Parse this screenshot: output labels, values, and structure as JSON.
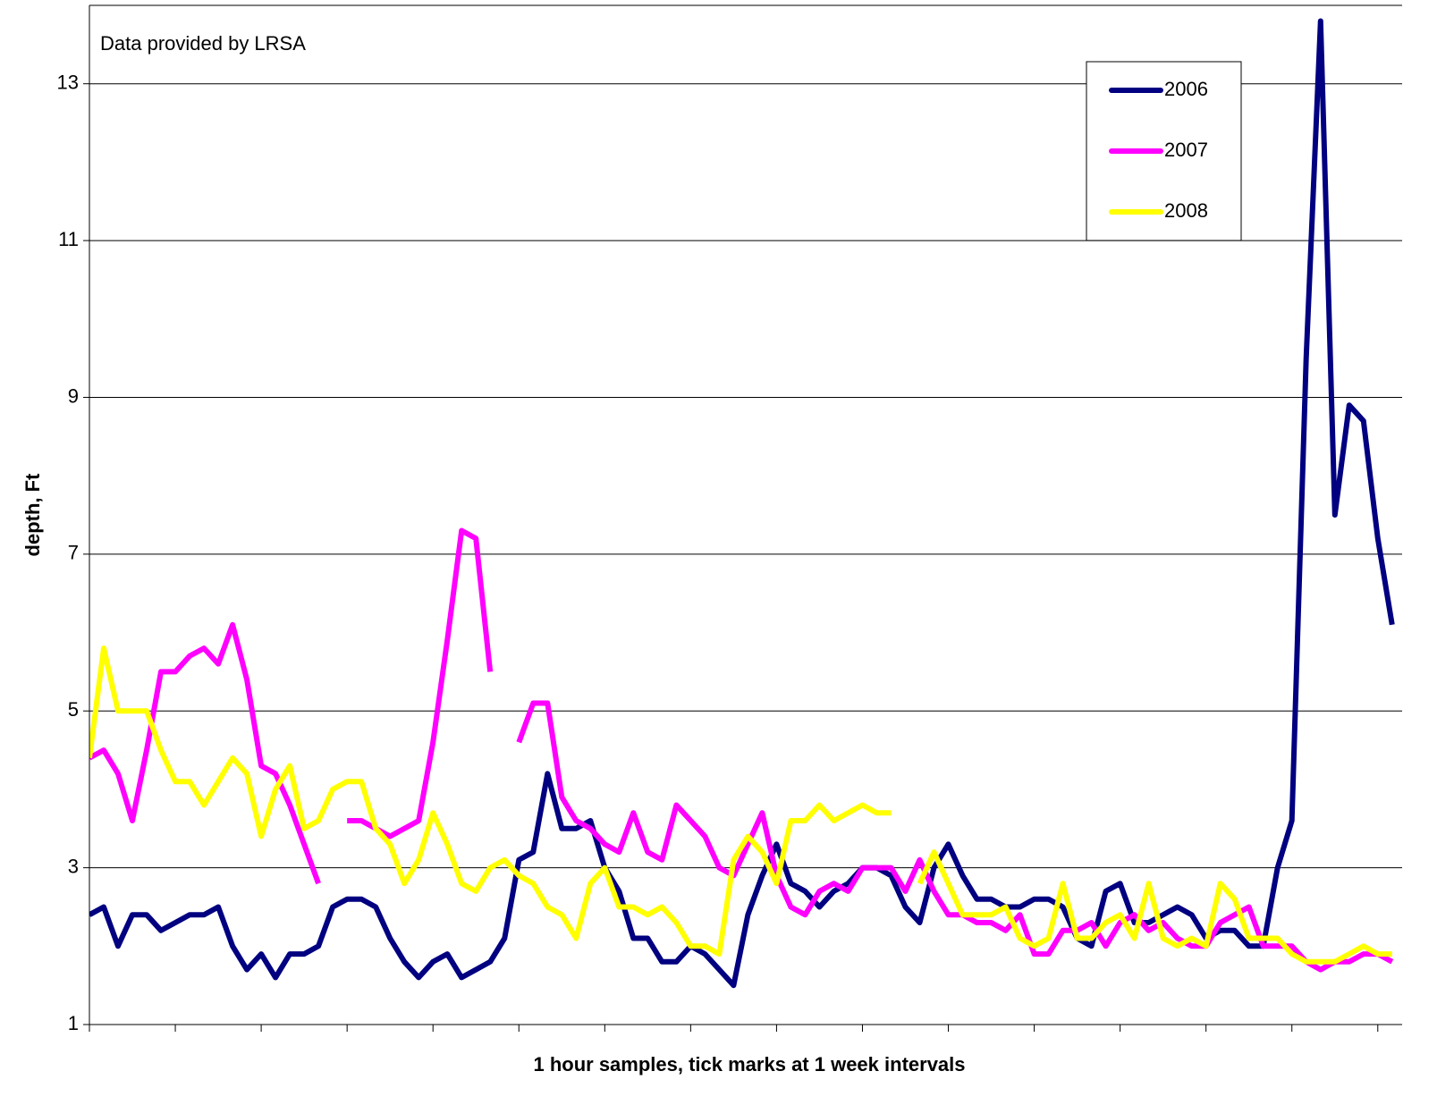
{
  "chart_data": {
    "type": "line",
    "annotation": "Data provided by LRSA",
    "ylabel": "depth, Ft",
    "xlabel": "1 hour samples, tick marks at 1 week intervals",
    "ylim": [
      1,
      14
    ],
    "yticks": [
      1,
      3,
      5,
      7,
      9,
      11,
      13
    ],
    "xlim": [
      0,
      91.7
    ],
    "xticks": [
      0,
      6,
      12,
      18,
      24,
      30,
      36,
      42,
      48,
      54,
      60,
      66,
      72,
      78,
      84,
      90
    ],
    "grid": true,
    "legend": "upper right",
    "series": [
      {
        "name": "2006",
        "color": "#000080",
        "values": [
          2.4,
          2.5,
          2.0,
          2.4,
          2.4,
          2.2,
          2.3,
          2.4,
          2.4,
          2.5,
          2.0,
          1.7,
          1.9,
          1.6,
          1.9,
          1.9,
          2.0,
          2.5,
          2.6,
          2.6,
          2.5,
          2.1,
          1.8,
          1.6,
          1.8,
          1.9,
          1.6,
          1.7,
          1.8,
          2.1,
          3.1,
          3.2,
          4.2,
          3.5,
          3.5,
          3.6,
          3.0,
          2.7,
          2.1,
          2.1,
          1.8,
          1.8,
          2.0,
          1.9,
          1.7,
          1.5,
          2.4,
          2.9,
          3.3,
          2.8,
          2.7,
          2.5,
          2.7,
          2.8,
          3.0,
          3.0,
          2.9,
          2.5,
          2.3,
          3.0,
          3.3,
          2.9,
          2.6,
          2.6,
          2.5,
          2.5,
          2.6,
          2.6,
          2.5,
          2.1,
          2.0,
          2.7,
          2.8,
          2.3,
          2.3,
          2.4,
          2.5,
          2.4,
          2.1,
          2.2,
          2.2,
          2.0,
          2.0,
          3.0,
          3.6,
          9.5,
          13.8,
          7.5,
          8.9,
          8.7,
          7.2,
          6.1
        ]
      },
      {
        "name": "2007",
        "color": "#ff00ff",
        "values": [
          4.4,
          4.5,
          4.2,
          3.6,
          4.5,
          5.5,
          5.5,
          5.7,
          5.8,
          5.6,
          6.1,
          5.4,
          4.3,
          4.2,
          3.8,
          3.3,
          2.8,
          null,
          3.6,
          3.6,
          3.5,
          3.4,
          3.5,
          3.6,
          4.6,
          5.9,
          7.3,
          7.2,
          5.5,
          null,
          4.6,
          5.1,
          5.1,
          3.9,
          3.6,
          3.5,
          3.3,
          3.2,
          3.7,
          3.2,
          3.1,
          3.8,
          3.6,
          3.4,
          3.0,
          2.9,
          3.3,
          3.7,
          2.9,
          2.5,
          2.4,
          2.7,
          2.8,
          2.7,
          3.0,
          3.0,
          3.0,
          2.7,
          3.1,
          2.7,
          2.4,
          2.4,
          2.3,
          2.3,
          2.2,
          2.4,
          1.9,
          1.9,
          2.2,
          2.2,
          2.3,
          2.0,
          2.3,
          2.4,
          2.2,
          2.3,
          2.1,
          2.0,
          2.0,
          2.3,
          2.4,
          2.5,
          2.0,
          2.0,
          2.0,
          1.8,
          1.7,
          1.8,
          1.8,
          1.9,
          1.9,
          1.8
        ]
      },
      {
        "name": "2008",
        "color": "#ffff00",
        "values": [
          4.4,
          5.8,
          5.0,
          5.0,
          5.0,
          4.5,
          4.1,
          4.1,
          3.8,
          4.1,
          4.4,
          4.2,
          3.4,
          4.0,
          4.3,
          3.5,
          3.6,
          4.0,
          4.1,
          4.1,
          3.5,
          3.3,
          2.8,
          3.1,
          3.7,
          3.3,
          2.8,
          2.7,
          3.0,
          3.1,
          2.9,
          2.8,
          2.5,
          2.4,
          2.1,
          2.8,
          3.0,
          2.5,
          2.5,
          2.4,
          2.5,
          2.3,
          2.0,
          2.0,
          1.9,
          3.1,
          3.4,
          3.2,
          2.8,
          3.6,
          3.6,
          3.8,
          3.6,
          3.7,
          3.8,
          3.7,
          3.7,
          null,
          2.8,
          3.2,
          2.8,
          2.4,
          2.4,
          2.4,
          2.5,
          2.1,
          2.0,
          2.1,
          2.8,
          2.1,
          2.1,
          2.3,
          2.4,
          2.1,
          2.8,
          2.1,
          2.0,
          2.1,
          2.0,
          2.8,
          2.6,
          2.1,
          2.1,
          2.1,
          1.9,
          1.8,
          1.8,
          1.8,
          1.9,
          2.0,
          1.9,
          1.9
        ]
      }
    ]
  }
}
